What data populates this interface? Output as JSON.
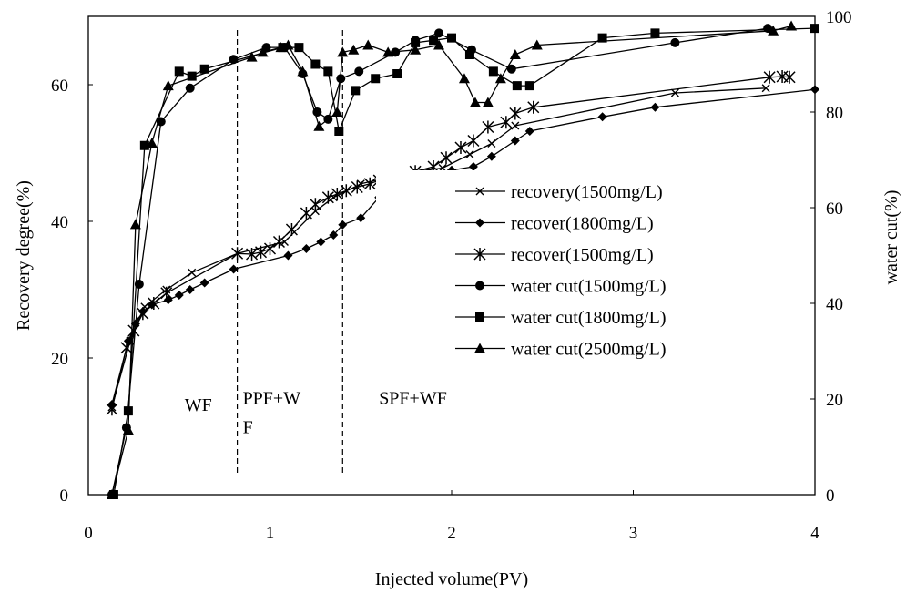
{
  "chart_data": {
    "type": "line",
    "xlabel": "Injected volume(PV)",
    "ylabel": "Recovery degree(%)",
    "y2label": "water cut(%)",
    "xlim": [
      0,
      4
    ],
    "ylim": [
      0,
      70
    ],
    "y2lim": [
      0,
      100
    ],
    "x_ticks": [
      "0",
      "1",
      "2",
      "3",
      "4"
    ],
    "y_ticks": [
      "0",
      "20",
      "40",
      "60"
    ],
    "y2_ticks": [
      "0",
      "20",
      "40",
      "60",
      "80",
      "100"
    ],
    "grid": false,
    "legend_position": "center-right",
    "region_labels": [
      {
        "lines": [
          "WF"
        ],
        "x": 0.53,
        "y": 12.3
      },
      {
        "lines": [
          "PPF+W",
          "F"
        ],
        "x": 0.85,
        "y": 13.3
      },
      {
        "lines": [
          "SPF+WF"
        ],
        "x": 1.6,
        "y": 13.3
      }
    ],
    "vlines": [
      0.82,
      1.4
    ],
    "series": [
      {
        "name": "recovery(1500mg/L)",
        "axis": "left",
        "marker": "x",
        "x": [
          0.13,
          0.23,
          0.31,
          0.43,
          0.57,
          0.82,
          1.08,
          1.25,
          1.35,
          1.5,
          1.8,
          1.95,
          2.1,
          2.22,
          2.35,
          3.23,
          3.73
        ],
        "y": [
          12.8,
          22.5,
          27.5,
          30.0,
          32.5,
          35.3,
          37.0,
          41.5,
          43.5,
          45.5,
          47.3,
          47.8,
          49.8,
          51.4,
          54.0,
          58.8,
          59.5
        ]
      },
      {
        "name": "recover(1800mg/L)",
        "axis": "left",
        "marker": "diamond",
        "x": [
          0.13,
          0.22,
          0.26,
          0.3,
          0.35,
          0.44,
          0.5,
          0.56,
          0.64,
          0.8,
          1.1,
          1.2,
          1.28,
          1.35,
          1.4,
          1.5,
          1.6,
          1.85,
          2.0,
          2.12,
          2.22,
          2.35,
          2.43,
          2.83,
          3.12,
          4.0
        ],
        "y": [
          13.2,
          22.5,
          25.0,
          26.8,
          27.8,
          28.5,
          29.2,
          30.0,
          31.0,
          33.0,
          35.0,
          36.0,
          37.0,
          38.0,
          39.5,
          40.5,
          43.5,
          46.5,
          47.5,
          48.0,
          49.5,
          51.8,
          53.2,
          55.3,
          56.7,
          59.3
        ]
      },
      {
        "name": "recover(1500mg/L)",
        "axis": "left",
        "marker": "asterisk",
        "x": [
          0.13,
          0.21,
          0.25,
          0.3,
          0.36,
          0.43,
          0.82,
          0.9,
          0.95,
          1.0,
          1.05,
          1.12,
          1.2,
          1.25,
          1.32,
          1.37,
          1.42,
          1.48,
          1.55,
          1.6,
          1.8,
          1.9,
          1.97,
          2.05,
          2.12,
          2.2,
          2.3,
          2.35,
          2.45,
          3.75,
          3.82,
          3.86
        ],
        "y": [
          12.5,
          21.5,
          24.0,
          26.5,
          28.0,
          29.5,
          35.3,
          35.2,
          35.5,
          36.0,
          37.0,
          38.8,
          41.2,
          42.5,
          43.5,
          44.0,
          44.5,
          45.0,
          45.5,
          46.0,
          47.3,
          48.0,
          49.3,
          50.8,
          51.8,
          53.8,
          54.5,
          55.8,
          56.7,
          61.1,
          61.2,
          61.1
        ]
      },
      {
        "name": "water cut(1500mg/L)",
        "axis": "right",
        "marker": "circle",
        "x": [
          0.13,
          0.21,
          0.28,
          0.4,
          0.56,
          0.8,
          0.98,
          1.08,
          1.18,
          1.26,
          1.32,
          1.39,
          1.49,
          1.69,
          1.8,
          1.93,
          2.11,
          2.33,
          3.23,
          3.74
        ],
        "y": [
          0,
          14,
          44,
          78,
          85,
          91,
          93.5,
          93.5,
          88,
          80,
          78.5,
          87,
          88.5,
          92.5,
          95,
          96.5,
          93,
          89,
          94.5,
          97.5
        ]
      },
      {
        "name": "water cut(1800mg/L)",
        "axis": "right",
        "marker": "square",
        "x": [
          0.14,
          0.22,
          0.31,
          0.5,
          0.57,
          0.64,
          1.07,
          1.16,
          1.25,
          1.32,
          1.38,
          1.47,
          1.58,
          1.7,
          1.8,
          1.9,
          2.0,
          2.1,
          2.23,
          2.36,
          2.43,
          2.83,
          3.12,
          4.0
        ],
        "y": [
          0,
          17.5,
          73,
          88.5,
          87.5,
          89,
          93.5,
          93.5,
          90,
          88.5,
          76,
          84.5,
          87,
          88,
          94.5,
          95,
          95.5,
          92,
          88.5,
          85.5,
          85.5,
          95.5,
          96.5,
          97.5
        ]
      },
      {
        "name": "water cut(2500mg/L)",
        "axis": "right",
        "marker": "triangle",
        "x": [
          0.13,
          0.22,
          0.26,
          0.35,
          0.44,
          0.9,
          0.96,
          1.06,
          1.1,
          1.18,
          1.27,
          1.37,
          1.4,
          1.46,
          1.54,
          1.65,
          1.8,
          1.93,
          2.07,
          2.13,
          2.2,
          2.27,
          2.35,
          2.47,
          3.77,
          3.87
        ],
        "y": [
          0,
          13.5,
          56.5,
          73.5,
          85.5,
          91.5,
          92.5,
          93.5,
          94,
          88.5,
          77,
          80,
          92.5,
          93,
          94,
          92.5,
          93,
          94,
          87,
          82,
          82,
          87,
          92,
          94,
          97,
          98
        ]
      }
    ]
  }
}
